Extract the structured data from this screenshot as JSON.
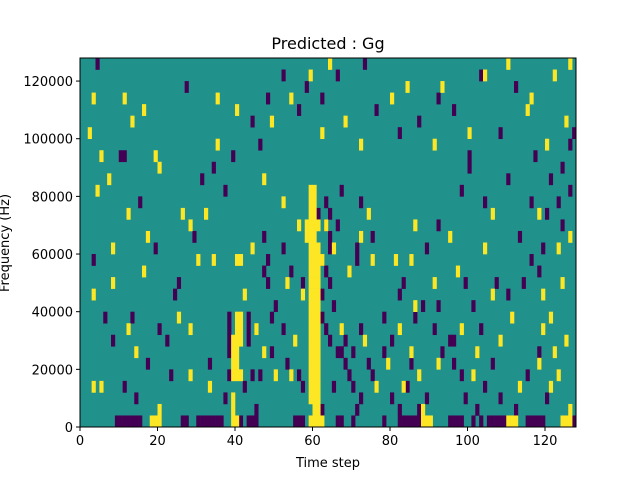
{
  "chart_data": {
    "type": "heatmap",
    "title": "Predicted : Gg",
    "xlabel": "Time step",
    "ylabel": "Frequency (Hz)",
    "xlim": [
      0,
      128
    ],
    "ylim": [
      0,
      128000
    ],
    "x_ticks": [
      0,
      20,
      40,
      60,
      80,
      100,
      120
    ],
    "y_ticks": [
      0,
      20000,
      40000,
      60000,
      80000,
      100000,
      120000
    ],
    "x_tick_labels": [
      "0",
      "20",
      "40",
      "60",
      "80",
      "100",
      "120"
    ],
    "y_tick_labels": [
      "0",
      "20000",
      "40000",
      "60000",
      "80000",
      "100000",
      "120000"
    ],
    "grid": false,
    "colormap": "viridis",
    "levels": [
      -1,
      0,
      1
    ],
    "level_colors": {
      "-1": "#440154",
      "0": "#21918c",
      "1": "#fde725"
    },
    "background_level": 0,
    "cell_width": 1,
    "cell_height": 4000,
    "cells_high": [
      [
        59,
        80000
      ],
      [
        60,
        80000
      ],
      [
        59,
        76000
      ],
      [
        60,
        76000
      ],
      [
        59,
        72000
      ],
      [
        60,
        72000
      ],
      [
        58,
        68000
      ],
      [
        59,
        68000
      ],
      [
        60,
        68000
      ],
      [
        61,
        68000
      ],
      [
        58,
        64000
      ],
      [
        59,
        64000
      ],
      [
        60,
        64000
      ],
      [
        59,
        60000
      ],
      [
        60,
        60000
      ],
      [
        61,
        60000
      ],
      [
        59,
        56000
      ],
      [
        60,
        56000
      ],
      [
        61,
        56000
      ],
      [
        62,
        56000
      ],
      [
        59,
        52000
      ],
      [
        60,
        52000
      ],
      [
        61,
        52000
      ],
      [
        59,
        48000
      ],
      [
        60,
        48000
      ],
      [
        61,
        48000
      ],
      [
        59,
        44000
      ],
      [
        60,
        44000
      ],
      [
        61,
        44000
      ],
      [
        59,
        40000
      ],
      [
        60,
        40000
      ],
      [
        61,
        40000
      ],
      [
        59,
        36000
      ],
      [
        60,
        36000
      ],
      [
        61,
        36000
      ],
      [
        59,
        32000
      ],
      [
        60,
        32000
      ],
      [
        61,
        32000
      ],
      [
        59,
        28000
      ],
      [
        60,
        28000
      ],
      [
        61,
        28000
      ],
      [
        59,
        24000
      ],
      [
        60,
        24000
      ],
      [
        61,
        24000
      ],
      [
        59,
        20000
      ],
      [
        60,
        20000
      ],
      [
        61,
        20000
      ],
      [
        59,
        16000
      ],
      [
        60,
        16000
      ],
      [
        61,
        16000
      ],
      [
        59,
        12000
      ],
      [
        60,
        12000
      ],
      [
        61,
        12000
      ],
      [
        59,
        8000
      ],
      [
        60,
        8000
      ],
      [
        61,
        8000
      ],
      [
        60,
        4000
      ],
      [
        61,
        4000
      ],
      [
        59,
        0
      ],
      [
        60,
        0
      ],
      [
        61,
        0
      ],
      [
        62,
        0
      ],
      [
        40,
        36000
      ],
      [
        41,
        36000
      ],
      [
        40,
        32000
      ],
      [
        41,
        32000
      ],
      [
        39,
        28000
      ],
      [
        40,
        28000
      ],
      [
        41,
        28000
      ],
      [
        39,
        24000
      ],
      [
        40,
        24000
      ],
      [
        39,
        20000
      ],
      [
        40,
        20000
      ],
      [
        39,
        16000
      ],
      [
        40,
        16000
      ],
      [
        41,
        16000
      ],
      [
        40,
        56000
      ],
      [
        41,
        56000
      ],
      [
        39,
        8000
      ],
      [
        39,
        4000
      ],
      [
        39,
        0
      ],
      [
        40,
        0
      ],
      [
        18,
        0
      ],
      [
        19,
        0
      ],
      [
        20,
        0
      ],
      [
        20,
        4000
      ],
      [
        88,
        0
      ],
      [
        89,
        0
      ],
      [
        90,
        0
      ],
      [
        88,
        4000
      ],
      [
        110,
        0
      ],
      [
        111,
        0
      ],
      [
        112,
        0
      ],
      [
        124,
        0
      ],
      [
        125,
        0
      ],
      [
        126,
        0
      ],
      [
        126,
        4000
      ],
      [
        3,
        12000
      ],
      [
        5,
        12000
      ],
      [
        28,
        16000
      ],
      [
        33,
        12000
      ],
      [
        47,
        24000
      ],
      [
        50,
        16000
      ],
      [
        54,
        16000
      ],
      [
        76,
        12000
      ],
      [
        79,
        20000
      ],
      [
        83,
        12000
      ],
      [
        85,
        24000
      ],
      [
        87,
        16000
      ],
      [
        92,
        20000
      ],
      [
        101,
        16000
      ],
      [
        102,
        24000
      ],
      [
        113,
        12000
      ],
      [
        118,
        20000
      ],
      [
        121,
        12000
      ],
      [
        122,
        24000
      ],
      [
        123,
        16000
      ],
      [
        12,
        32000
      ],
      [
        14,
        24000
      ],
      [
        25,
        36000
      ],
      [
        28,
        32000
      ],
      [
        45,
        32000
      ],
      [
        55,
        28000
      ],
      [
        67,
        32000
      ],
      [
        73,
        28000
      ],
      [
        82,
        32000
      ],
      [
        98,
        32000
      ],
      [
        108,
        28000
      ],
      [
        111,
        36000
      ],
      [
        119,
        32000
      ],
      [
        125,
        28000
      ],
      [
        3,
        44000
      ],
      [
        8,
        48000
      ],
      [
        16,
        52000
      ],
      [
        30,
        56000
      ],
      [
        34,
        56000
      ],
      [
        53,
        48000
      ],
      [
        57,
        44000
      ],
      [
        69,
        52000
      ],
      [
        75,
        56000
      ],
      [
        86,
        40000
      ],
      [
        91,
        48000
      ],
      [
        97,
        52000
      ],
      [
        106,
        44000
      ],
      [
        119,
        44000
      ],
      [
        124,
        48000
      ],
      [
        121,
        36000
      ],
      [
        8,
        60000
      ],
      [
        17,
        64000
      ],
      [
        28,
        68000
      ],
      [
        44,
        60000
      ],
      [
        56,
        68000
      ],
      [
        65,
        60000
      ],
      [
        72,
        64000
      ],
      [
        81,
        56000
      ],
      [
        85,
        56000
      ],
      [
        95,
        64000
      ],
      [
        104,
        60000
      ],
      [
        123,
        60000
      ],
      [
        4,
        80000
      ],
      [
        7,
        84000
      ],
      [
        12,
        72000
      ],
      [
        20,
        88000
      ],
      [
        26,
        72000
      ],
      [
        32,
        72000
      ],
      [
        47,
        84000
      ],
      [
        52,
        76000
      ],
      [
        63,
        68000
      ],
      [
        74,
        72000
      ],
      [
        86,
        68000
      ],
      [
        106,
        72000
      ],
      [
        118,
        72000
      ],
      [
        126,
        64000
      ],
      [
        2,
        100000
      ],
      [
        5,
        92000
      ],
      [
        13,
        104000
      ],
      [
        19,
        92000
      ],
      [
        35,
        96000
      ],
      [
        40,
        108000
      ],
      [
        49,
        104000
      ],
      [
        62,
        100000
      ],
      [
        68,
        104000
      ],
      [
        72,
        96000
      ],
      [
        91,
        96000
      ],
      [
        100,
        100000
      ],
      [
        115,
        108000
      ],
      [
        120,
        96000
      ],
      [
        125,
        104000
      ],
      [
        3,
        112000
      ],
      [
        11,
        112000
      ],
      [
        16,
        108000
      ],
      [
        35,
        112000
      ],
      [
        54,
        112000
      ],
      [
        59,
        120000
      ],
      [
        64,
        124000
      ],
      [
        80,
        112000
      ],
      [
        84,
        116000
      ],
      [
        93,
        116000
      ],
      [
        104,
        120000
      ],
      [
        110,
        124000
      ],
      [
        116,
        112000
      ],
      [
        122,
        120000
      ],
      [
        126,
        124000
      ],
      [
        42,
        44000
      ]
    ],
    "cells_low": [
      [
        61,
        60000
      ],
      [
        62,
        56000
      ],
      [
        63,
        52000
      ],
      [
        62,
        44000
      ],
      [
        62,
        36000
      ],
      [
        63,
        32000
      ],
      [
        63,
        68000
      ],
      [
        64,
        64000
      ],
      [
        64,
        60000
      ],
      [
        64,
        48000
      ],
      [
        65,
        40000
      ],
      [
        64,
        28000
      ],
      [
        67,
        24000
      ],
      [
        68,
        20000
      ],
      [
        69,
        16000
      ],
      [
        70,
        12000
      ],
      [
        71,
        4000
      ],
      [
        72,
        8000
      ],
      [
        65,
        12000
      ],
      [
        66,
        24000
      ],
      [
        68,
        28000
      ],
      [
        70,
        24000
      ],
      [
        72,
        32000
      ],
      [
        74,
        20000
      ],
      [
        75,
        16000
      ],
      [
        78,
        24000
      ],
      [
        80,
        8000
      ],
      [
        82,
        4000
      ],
      [
        84,
        12000
      ],
      [
        85,
        20000
      ],
      [
        87,
        4000
      ],
      [
        89,
        8000
      ],
      [
        91,
        32000
      ],
      [
        93,
        24000
      ],
      [
        95,
        28000
      ],
      [
        96,
        20000
      ],
      [
        98,
        16000
      ],
      [
        99,
        8000
      ],
      [
        102,
        4000
      ],
      [
        104,
        12000
      ],
      [
        106,
        20000
      ],
      [
        108,
        8000
      ],
      [
        112,
        4000
      ],
      [
        115,
        16000
      ],
      [
        118,
        24000
      ],
      [
        120,
        8000
      ],
      [
        38,
        32000
      ],
      [
        38,
        36000
      ],
      [
        38,
        28000
      ],
      [
        38,
        24000
      ],
      [
        38,
        16000
      ],
      [
        42,
        12000
      ],
      [
        43,
        28000
      ],
      [
        43,
        32000
      ],
      [
        43,
        36000
      ],
      [
        44,
        16000
      ],
      [
        45,
        4000
      ],
      [
        46,
        16000
      ],
      [
        49,
        36000
      ],
      [
        49,
        24000
      ],
      [
        40,
        0
      ],
      [
        41,
        0
      ],
      [
        43,
        0
      ],
      [
        56,
        16000
      ],
      [
        57,
        12000
      ],
      [
        48,
        48000
      ],
      [
        48,
        56000
      ],
      [
        47,
        64000
      ],
      [
        52,
        60000
      ],
      [
        54,
        52000
      ],
      [
        57,
        48000
      ],
      [
        61,
        72000
      ],
      [
        63,
        76000
      ],
      [
        64,
        72000
      ],
      [
        66,
        68000
      ],
      [
        67,
        80000
      ],
      [
        71,
        60000
      ],
      [
        71,
        56000
      ],
      [
        72,
        76000
      ],
      [
        75,
        64000
      ],
      [
        82,
        44000
      ],
      [
        86,
        36000
      ],
      [
        88,
        40000
      ],
      [
        92,
        40000
      ],
      [
        96,
        28000
      ],
      [
        99,
        48000
      ],
      [
        101,
        40000
      ],
      [
        103,
        32000
      ],
      [
        107,
        48000
      ],
      [
        110,
        44000
      ],
      [
        114,
        48000
      ],
      [
        116,
        56000
      ],
      [
        119,
        60000
      ],
      [
        120,
        72000
      ],
      [
        123,
        76000
      ],
      [
        126,
        80000
      ],
      [
        3,
        56000
      ],
      [
        6,
        36000
      ],
      [
        8,
        28000
      ],
      [
        11,
        12000
      ],
      [
        14,
        8000
      ],
      [
        17,
        20000
      ],
      [
        20,
        32000
      ],
      [
        23,
        16000
      ],
      [
        25,
        48000
      ],
      [
        29,
        64000
      ],
      [
        31,
        84000
      ],
      [
        34,
        88000
      ],
      [
        37,
        80000
      ],
      [
        39,
        92000
      ],
      [
        44,
        104000
      ],
      [
        46,
        96000
      ],
      [
        48,
        112000
      ],
      [
        52,
        120000
      ],
      [
        56,
        108000
      ],
      [
        58,
        116000
      ],
      [
        62,
        112000
      ],
      [
        66,
        120000
      ],
      [
        73,
        124000
      ],
      [
        76,
        108000
      ],
      [
        82,
        100000
      ],
      [
        87,
        104000
      ],
      [
        92,
        112000
      ],
      [
        96,
        108000
      ],
      [
        100,
        92000
      ],
      [
        103,
        120000
      ],
      [
        108,
        100000
      ],
      [
        112,
        116000
      ],
      [
        117,
        92000
      ],
      [
        121,
        84000
      ],
      [
        124,
        88000
      ],
      [
        126,
        96000
      ],
      [
        10,
        92000
      ],
      [
        11,
        92000
      ],
      [
        15,
        76000
      ],
      [
        19,
        60000
      ],
      [
        24,
        44000
      ],
      [
        4,
        124000
      ],
      [
        27,
        116000
      ],
      [
        9,
        0
      ],
      [
        10,
        0
      ],
      [
        11,
        0
      ],
      [
        12,
        0
      ],
      [
        13,
        0
      ],
      [
        14,
        0
      ],
      [
        15,
        0
      ],
      [
        26,
        0
      ],
      [
        27,
        0
      ],
      [
        30,
        0
      ],
      [
        31,
        0
      ],
      [
        32,
        0
      ],
      [
        33,
        0
      ],
      [
        34,
        0
      ],
      [
        35,
        0
      ],
      [
        36,
        0
      ],
      [
        44,
        0
      ],
      [
        45,
        0
      ],
      [
        55,
        0
      ],
      [
        56,
        0
      ],
      [
        57,
        0
      ],
      [
        60,
        4000
      ],
      [
        62,
        4000
      ],
      [
        66,
        0
      ],
      [
        67,
        0
      ],
      [
        70,
        0
      ],
      [
        78,
        0
      ],
      [
        82,
        0
      ],
      [
        83,
        0
      ],
      [
        84,
        0
      ],
      [
        85,
        0
      ],
      [
        86,
        0
      ],
      [
        87,
        0
      ],
      [
        95,
        0
      ],
      [
        96,
        0
      ],
      [
        97,
        0
      ],
      [
        98,
        0
      ],
      [
        101,
        0
      ],
      [
        103,
        0
      ],
      [
        105,
        0
      ],
      [
        106,
        0
      ],
      [
        107,
        0
      ],
      [
        108,
        0
      ],
      [
        109,
        0
      ],
      [
        115,
        0
      ],
      [
        116,
        0
      ],
      [
        117,
        0
      ],
      [
        118,
        0
      ],
      [
        119,
        0
      ],
      [
        127,
        0
      ],
      [
        13,
        36000
      ],
      [
        22,
        28000
      ],
      [
        33,
        20000
      ],
      [
        37,
        8000
      ],
      [
        47,
        52000
      ],
      [
        50,
        40000
      ],
      [
        52,
        32000
      ],
      [
        53,
        20000
      ],
      [
        78,
        36000
      ],
      [
        80,
        28000
      ],
      [
        83,
        48000
      ],
      [
        89,
        60000
      ],
      [
        92,
        68000
      ],
      [
        98,
        80000
      ],
      [
        104,
        76000
      ],
      [
        110,
        84000
      ],
      [
        113,
        64000
      ],
      [
        118,
        52000
      ],
      [
        127,
        100000
      ],
      [
        100,
        88000
      ],
      [
        116,
        76000
      ],
      [
        124,
        68000
      ]
    ]
  }
}
